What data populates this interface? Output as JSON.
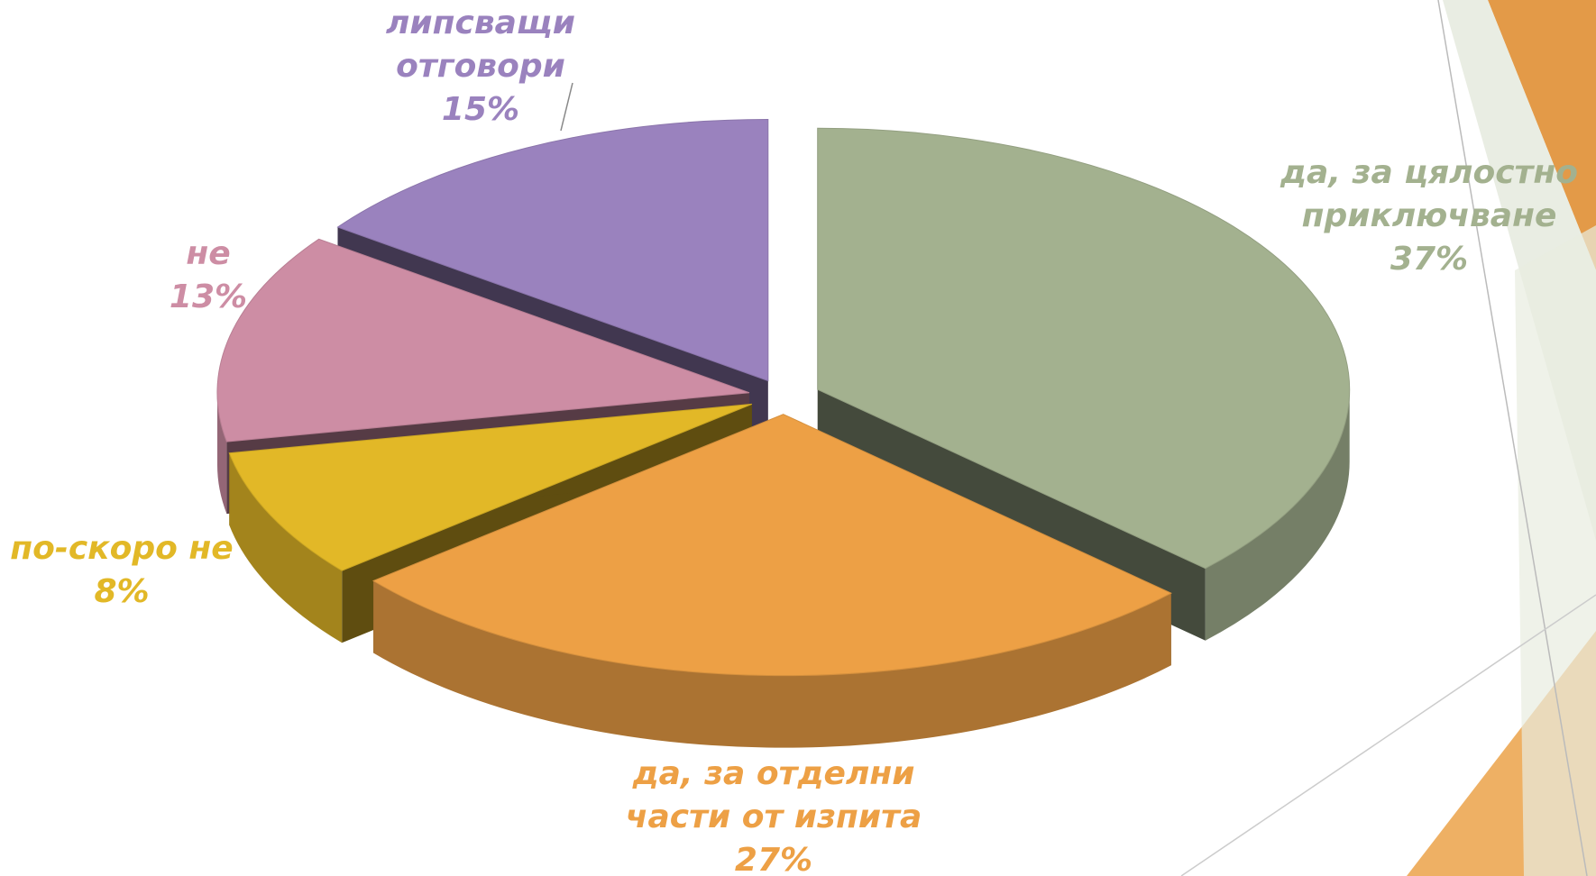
{
  "chart_data": {
    "type": "pie3d",
    "categories": [
      "да, за цялостно приключване",
      "да, за отделни части от изпита",
      "по-скоро не",
      "не",
      "липсващи отговори"
    ],
    "values": [
      37,
      27,
      8,
      13,
      15
    ],
    "value_labels": [
      "37%",
      "27%",
      "8%",
      "13%",
      "15%"
    ],
    "colors": [
      "#a3b18f",
      "#eda045",
      "#e2b827",
      "#cd8da4",
      "#9a82be"
    ]
  }
}
